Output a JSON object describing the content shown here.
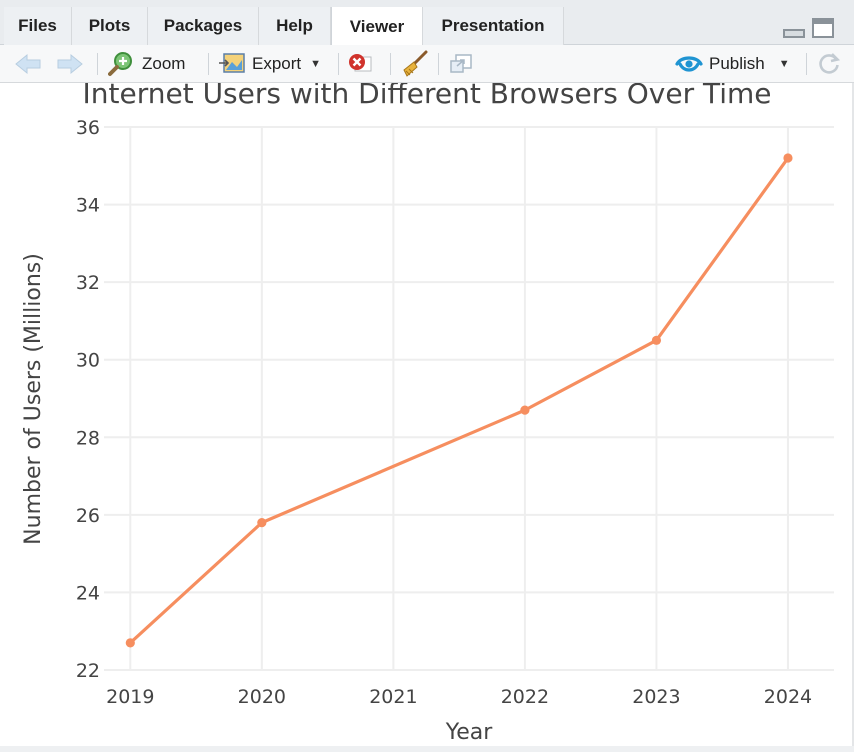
{
  "tabs": [
    {
      "label": "Files",
      "active": false
    },
    {
      "label": "Plots",
      "active": false
    },
    {
      "label": "Packages",
      "active": false
    },
    {
      "label": "Help",
      "active": false
    },
    {
      "label": "Viewer",
      "active": true
    },
    {
      "label": "Presentation",
      "active": false
    }
  ],
  "toolbar": {
    "zoom_label": "Zoom",
    "export_label": "Export",
    "publish_label": "Publish"
  },
  "colors": {
    "line": "#f68e5f",
    "grid": "#eeeeee",
    "axis_text": "#444444",
    "publish_icon": "#1f94d2"
  },
  "chart_data": {
    "type": "line",
    "title": "Internet Users with Different Browsers Over Time",
    "xlabel": "Year",
    "ylabel": "Number of Users (Millions)",
    "x": [
      2019,
      2020,
      2022,
      2023,
      2024
    ],
    "y": [
      22.7,
      25.8,
      28.7,
      30.5,
      35.2
    ],
    "x_ticks": [
      "2019",
      "2020",
      "2021",
      "2022",
      "2023",
      "2024"
    ],
    "x_tick_values": [
      2019,
      2020,
      2021,
      2022,
      2023,
      2024
    ],
    "y_ticks": [
      "22",
      "24",
      "26",
      "28",
      "30",
      "32",
      "34",
      "36"
    ],
    "y_tick_values": [
      22,
      24,
      26,
      28,
      30,
      32,
      34,
      36
    ],
    "xlim": [
      2018.8,
      2024.35
    ],
    "ylim": [
      22,
      36
    ],
    "grid": true,
    "legend": "none"
  }
}
